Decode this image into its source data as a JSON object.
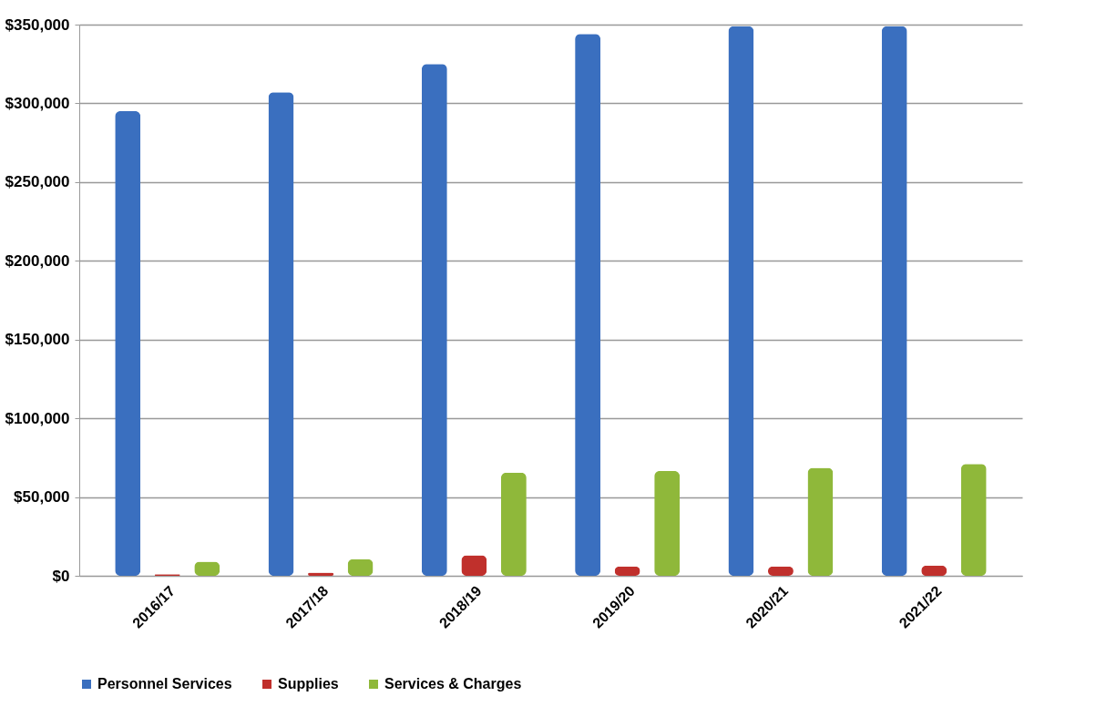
{
  "chart_data": {
    "type": "bar",
    "categories": [
      "2016/17",
      "2017/18",
      "2018/19",
      "2019/20",
      "2020/21",
      "2021/22"
    ],
    "series": [
      {
        "name": "Personnel Services",
        "color": "#3a6fbf",
        "values": [
          295000,
          307000,
          325000,
          344000,
          349000,
          349000
        ]
      },
      {
        "name": "Supplies",
        "color": "#c0302c",
        "values": [
          1000,
          2000,
          13000,
          6000,
          6000,
          6500
        ]
      },
      {
        "name": "Services & Charges",
        "color": "#8fb83a",
        "values": [
          9000,
          10500,
          65500,
          66500,
          68500,
          71000
        ]
      }
    ],
    "ylim": [
      0,
      350000
    ],
    "yticks": [
      {
        "value": 0,
        "label": "$0"
      },
      {
        "value": 50000,
        "label": "$50,000"
      },
      {
        "value": 100000,
        "label": "$100,000"
      },
      {
        "value": 150000,
        "label": "$150,000"
      },
      {
        "value": 200000,
        "label": "$200,000"
      },
      {
        "value": 250000,
        "label": "$250,000"
      },
      {
        "value": 300000,
        "label": "$300,000"
      },
      {
        "value": 350000,
        "label": "$350,000"
      }
    ],
    "grid": "y",
    "legend": "bottom"
  }
}
